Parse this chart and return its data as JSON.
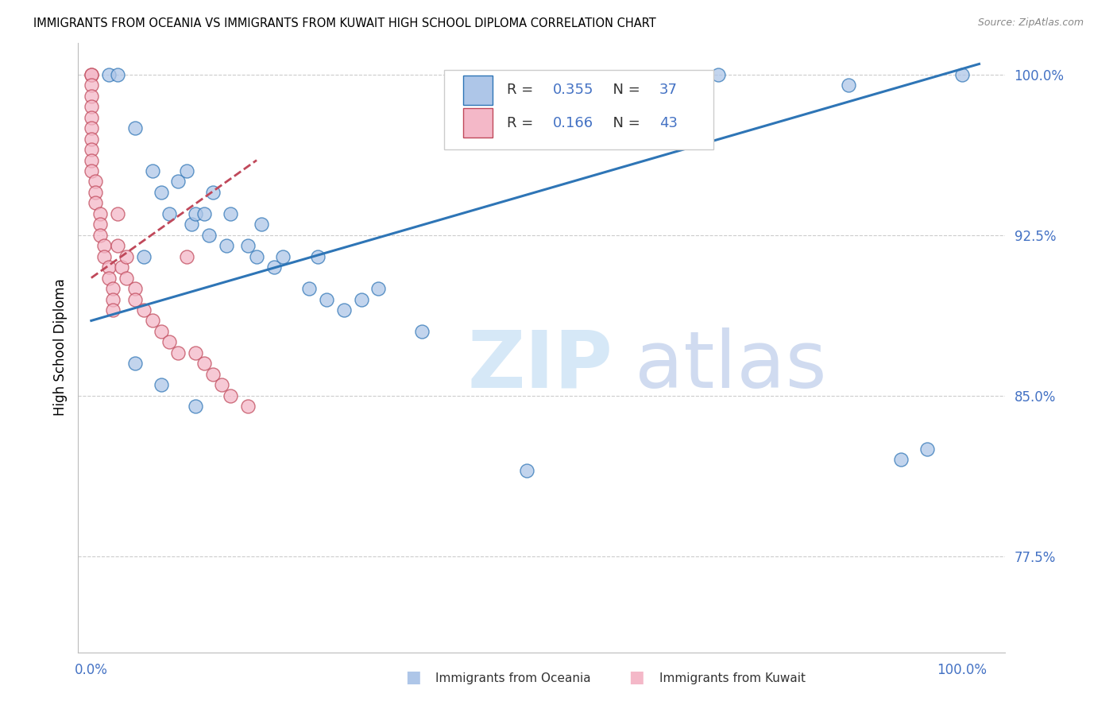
{
  "title": "IMMIGRANTS FROM OCEANIA VS IMMIGRANTS FROM KUWAIT HIGH SCHOOL DIPLOMA CORRELATION CHART",
  "source": "Source: ZipAtlas.com",
  "ylabel": "High School Diploma",
  "legend_r_oceania": "0.355",
  "legend_n_oceania": "37",
  "legend_r_kuwait": "0.166",
  "legend_n_kuwait": "43",
  "oceania_color": "#aec6e8",
  "kuwait_color": "#f4b8c8",
  "oceania_line_color": "#2e75b6",
  "kuwait_line_color": "#c0485a",
  "watermark_zip": "ZIP",
  "watermark_atlas": "atlas",
  "ytick_vals": [
    77.5,
    85.0,
    92.5,
    100.0
  ],
  "ytick_labels": [
    "77.5%",
    "85.0%",
    "92.5%",
    "100.0%"
  ],
  "ylim_min": 73.0,
  "ylim_max": 101.5,
  "xlim_min": -0.015,
  "xlim_max": 1.05,
  "oceania_x": [
    0.02,
    0.03,
    0.05,
    0.07,
    0.08,
    0.09,
    0.1,
    0.11,
    0.115,
    0.12,
    0.13,
    0.135,
    0.14,
    0.155,
    0.16,
    0.18,
    0.19,
    0.195,
    0.21,
    0.22,
    0.25,
    0.26,
    0.27,
    0.29,
    0.31,
    0.33,
    0.38,
    0.05,
    0.08,
    0.12,
    0.5,
    0.72,
    0.87,
    0.93,
    0.96,
    1.0,
    0.06
  ],
  "oceania_y": [
    100.0,
    100.0,
    97.5,
    95.5,
    94.5,
    93.5,
    95.0,
    95.5,
    93.0,
    93.5,
    93.5,
    92.5,
    94.5,
    92.0,
    93.5,
    92.0,
    91.5,
    93.0,
    91.0,
    91.5,
    90.0,
    91.5,
    89.5,
    89.0,
    89.5,
    90.0,
    88.0,
    86.5,
    85.5,
    84.5,
    81.5,
    100.0,
    99.5,
    82.0,
    82.5,
    100.0,
    91.5
  ],
  "kuwait_x": [
    0.0,
    0.0,
    0.0,
    0.0,
    0.0,
    0.0,
    0.0,
    0.0,
    0.0,
    0.0,
    0.0,
    0.005,
    0.005,
    0.005,
    0.01,
    0.01,
    0.01,
    0.015,
    0.015,
    0.02,
    0.02,
    0.025,
    0.025,
    0.025,
    0.03,
    0.03,
    0.035,
    0.04,
    0.04,
    0.05,
    0.05,
    0.06,
    0.07,
    0.08,
    0.09,
    0.1,
    0.11,
    0.12,
    0.13,
    0.14,
    0.15,
    0.16,
    0.18
  ],
  "kuwait_y": [
    100.0,
    100.0,
    99.5,
    99.0,
    98.5,
    98.0,
    97.5,
    97.0,
    96.5,
    96.0,
    95.5,
    95.0,
    94.5,
    94.0,
    93.5,
    93.0,
    92.5,
    92.0,
    91.5,
    91.0,
    90.5,
    90.0,
    89.5,
    89.0,
    93.5,
    92.0,
    91.0,
    91.5,
    90.5,
    90.0,
    89.5,
    89.0,
    88.5,
    88.0,
    87.5,
    87.0,
    91.5,
    87.0,
    86.5,
    86.0,
    85.5,
    85.0,
    84.5
  ],
  "oceania_trendline_x": [
    0.0,
    1.02
  ],
  "oceania_trendline_y": [
    88.5,
    100.5
  ],
  "kuwait_trendline_x": [
    0.0,
    0.19
  ],
  "kuwait_trendline_y": [
    90.5,
    96.0
  ]
}
